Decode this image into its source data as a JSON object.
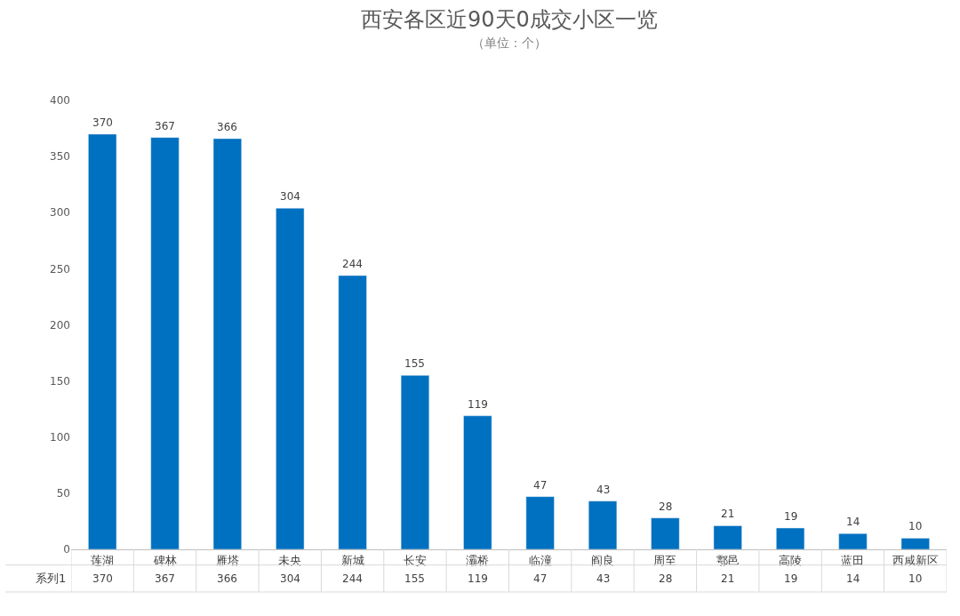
{
  "chart_data": {
    "type": "bar",
    "title": "西安各区近90天0成交小区一览",
    "subtitle": "（单位：个）",
    "categories": [
      "莲湖",
      "碑林",
      "雁塔",
      "未央",
      "新城",
      "长安",
      "灞桥",
      "临潼",
      "阎良",
      "周至",
      "鄠邑",
      "高陵",
      "蓝田",
      "西咸新区"
    ],
    "series": [
      {
        "name": "系列1",
        "color": "#0070c0",
        "values": [
          370,
          367,
          366,
          304,
          244,
          155,
          119,
          47,
          43,
          28,
          21,
          19,
          14,
          10
        ]
      }
    ],
    "annotations": [
      "370",
      "367",
      "366",
      "304",
      "244",
      "155",
      "119",
      "47",
      "43",
      "28",
      "21",
      "19",
      "14",
      "10"
    ],
    "ylim": [
      0,
      400
    ],
    "yticks": [
      0,
      50,
      100,
      150,
      200,
      250,
      300,
      350,
      400
    ],
    "grid": false,
    "legend": false,
    "data_labels": true
  }
}
